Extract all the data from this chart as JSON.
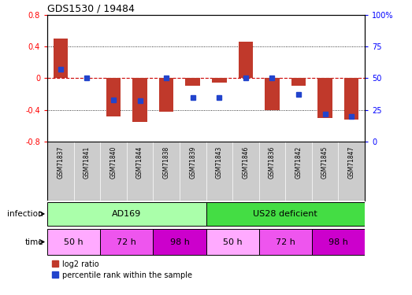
{
  "title": "GDS1530 / 19484",
  "samples": [
    "GSM71837",
    "GSM71841",
    "GSM71840",
    "GSM71844",
    "GSM71838",
    "GSM71839",
    "GSM71843",
    "GSM71846",
    "GSM71836",
    "GSM71842",
    "GSM71845",
    "GSM71847"
  ],
  "log2_ratio": [
    0.5,
    0.0,
    -0.48,
    -0.55,
    -0.42,
    -0.1,
    -0.06,
    0.46,
    -0.4,
    -0.1,
    -0.5,
    -0.52
  ],
  "percentile_rank": [
    57,
    50,
    33,
    32,
    50,
    35,
    35,
    50,
    50,
    37,
    22,
    20
  ],
  "bar_color": "#c0392b",
  "dot_color": "#2244cc",
  "zero_line_color": "#cc0000",
  "ylim": [
    -0.8,
    0.8
  ],
  "y2lim": [
    0,
    100
  ],
  "yticks": [
    -0.8,
    -0.4,
    0.0,
    0.4,
    0.8
  ],
  "y2ticks": [
    0,
    25,
    50,
    75,
    100
  ],
  "hlines": [
    -0.4,
    0.4
  ],
  "infection_labels": [
    "AD169",
    "US28 deficient"
  ],
  "infection_colors": [
    "#aaffaa",
    "#44dd44"
  ],
  "time_labels": [
    "50 h",
    "72 h",
    "98 h",
    "50 h",
    "72 h",
    "98 h"
  ],
  "time_colors": [
    "#ffaaff",
    "#ee55ee",
    "#cc00cc",
    "#ffaaff",
    "#ee55ee",
    "#cc00cc"
  ],
  "sample_bg_color": "#cccccc",
  "legend_red_label": "log2 ratio",
  "legend_blue_label": "percentile rank within the sample"
}
